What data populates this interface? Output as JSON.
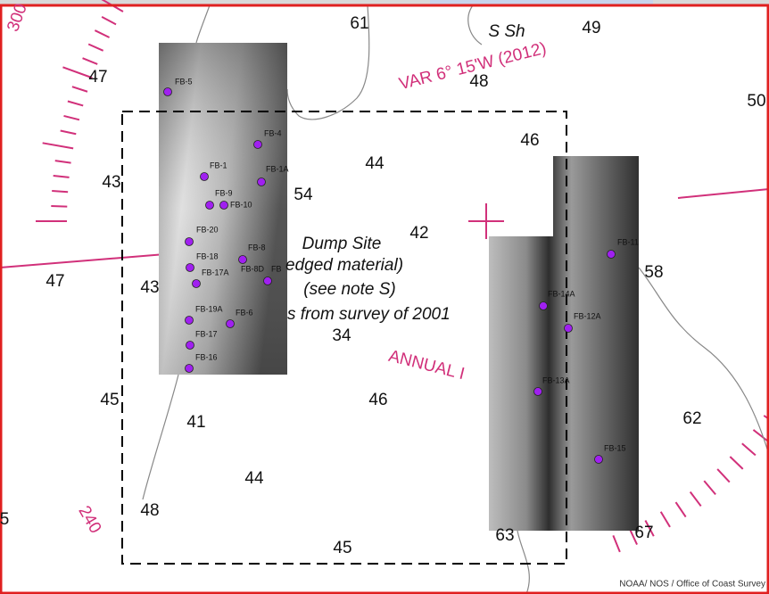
{
  "map": {
    "soundings": [
      "61",
      "49",
      "47",
      "48",
      "50",
      "46",
      "44",
      "43",
      "54",
      "42",
      "47",
      "43",
      "58",
      "34",
      "45",
      "46",
      "41",
      "62",
      "44",
      "48",
      "5",
      "63",
      "67",
      "45"
    ],
    "annotations": {
      "shoal": "S Sh",
      "variation": "VAR 6° 15'W (2012)",
      "dump_site": "Dump Site",
      "dredged": "edged material)",
      "note": "(see note S)",
      "survey": "s from survey of 2001",
      "annual": "ANNUAL I",
      "bearing_300": "300",
      "bearing_240": "240"
    },
    "stations_left": [
      "FB-5",
      "FB-4",
      "FB-1",
      "FB-1A",
      "FB-9",
      "FB-10",
      "FB-20",
      "FB-8",
      "FB-18",
      "FB-17A",
      "FB-8D",
      "FB",
      "FB-19A",
      "FB-6",
      "FB-17",
      "FB-16"
    ],
    "stations_right": [
      "FB-11",
      "FB-14A",
      "FB-12A",
      "FB-13A",
      "FB-15"
    ],
    "credit": "NOAA/ NOS / Office of Coast Survey"
  }
}
